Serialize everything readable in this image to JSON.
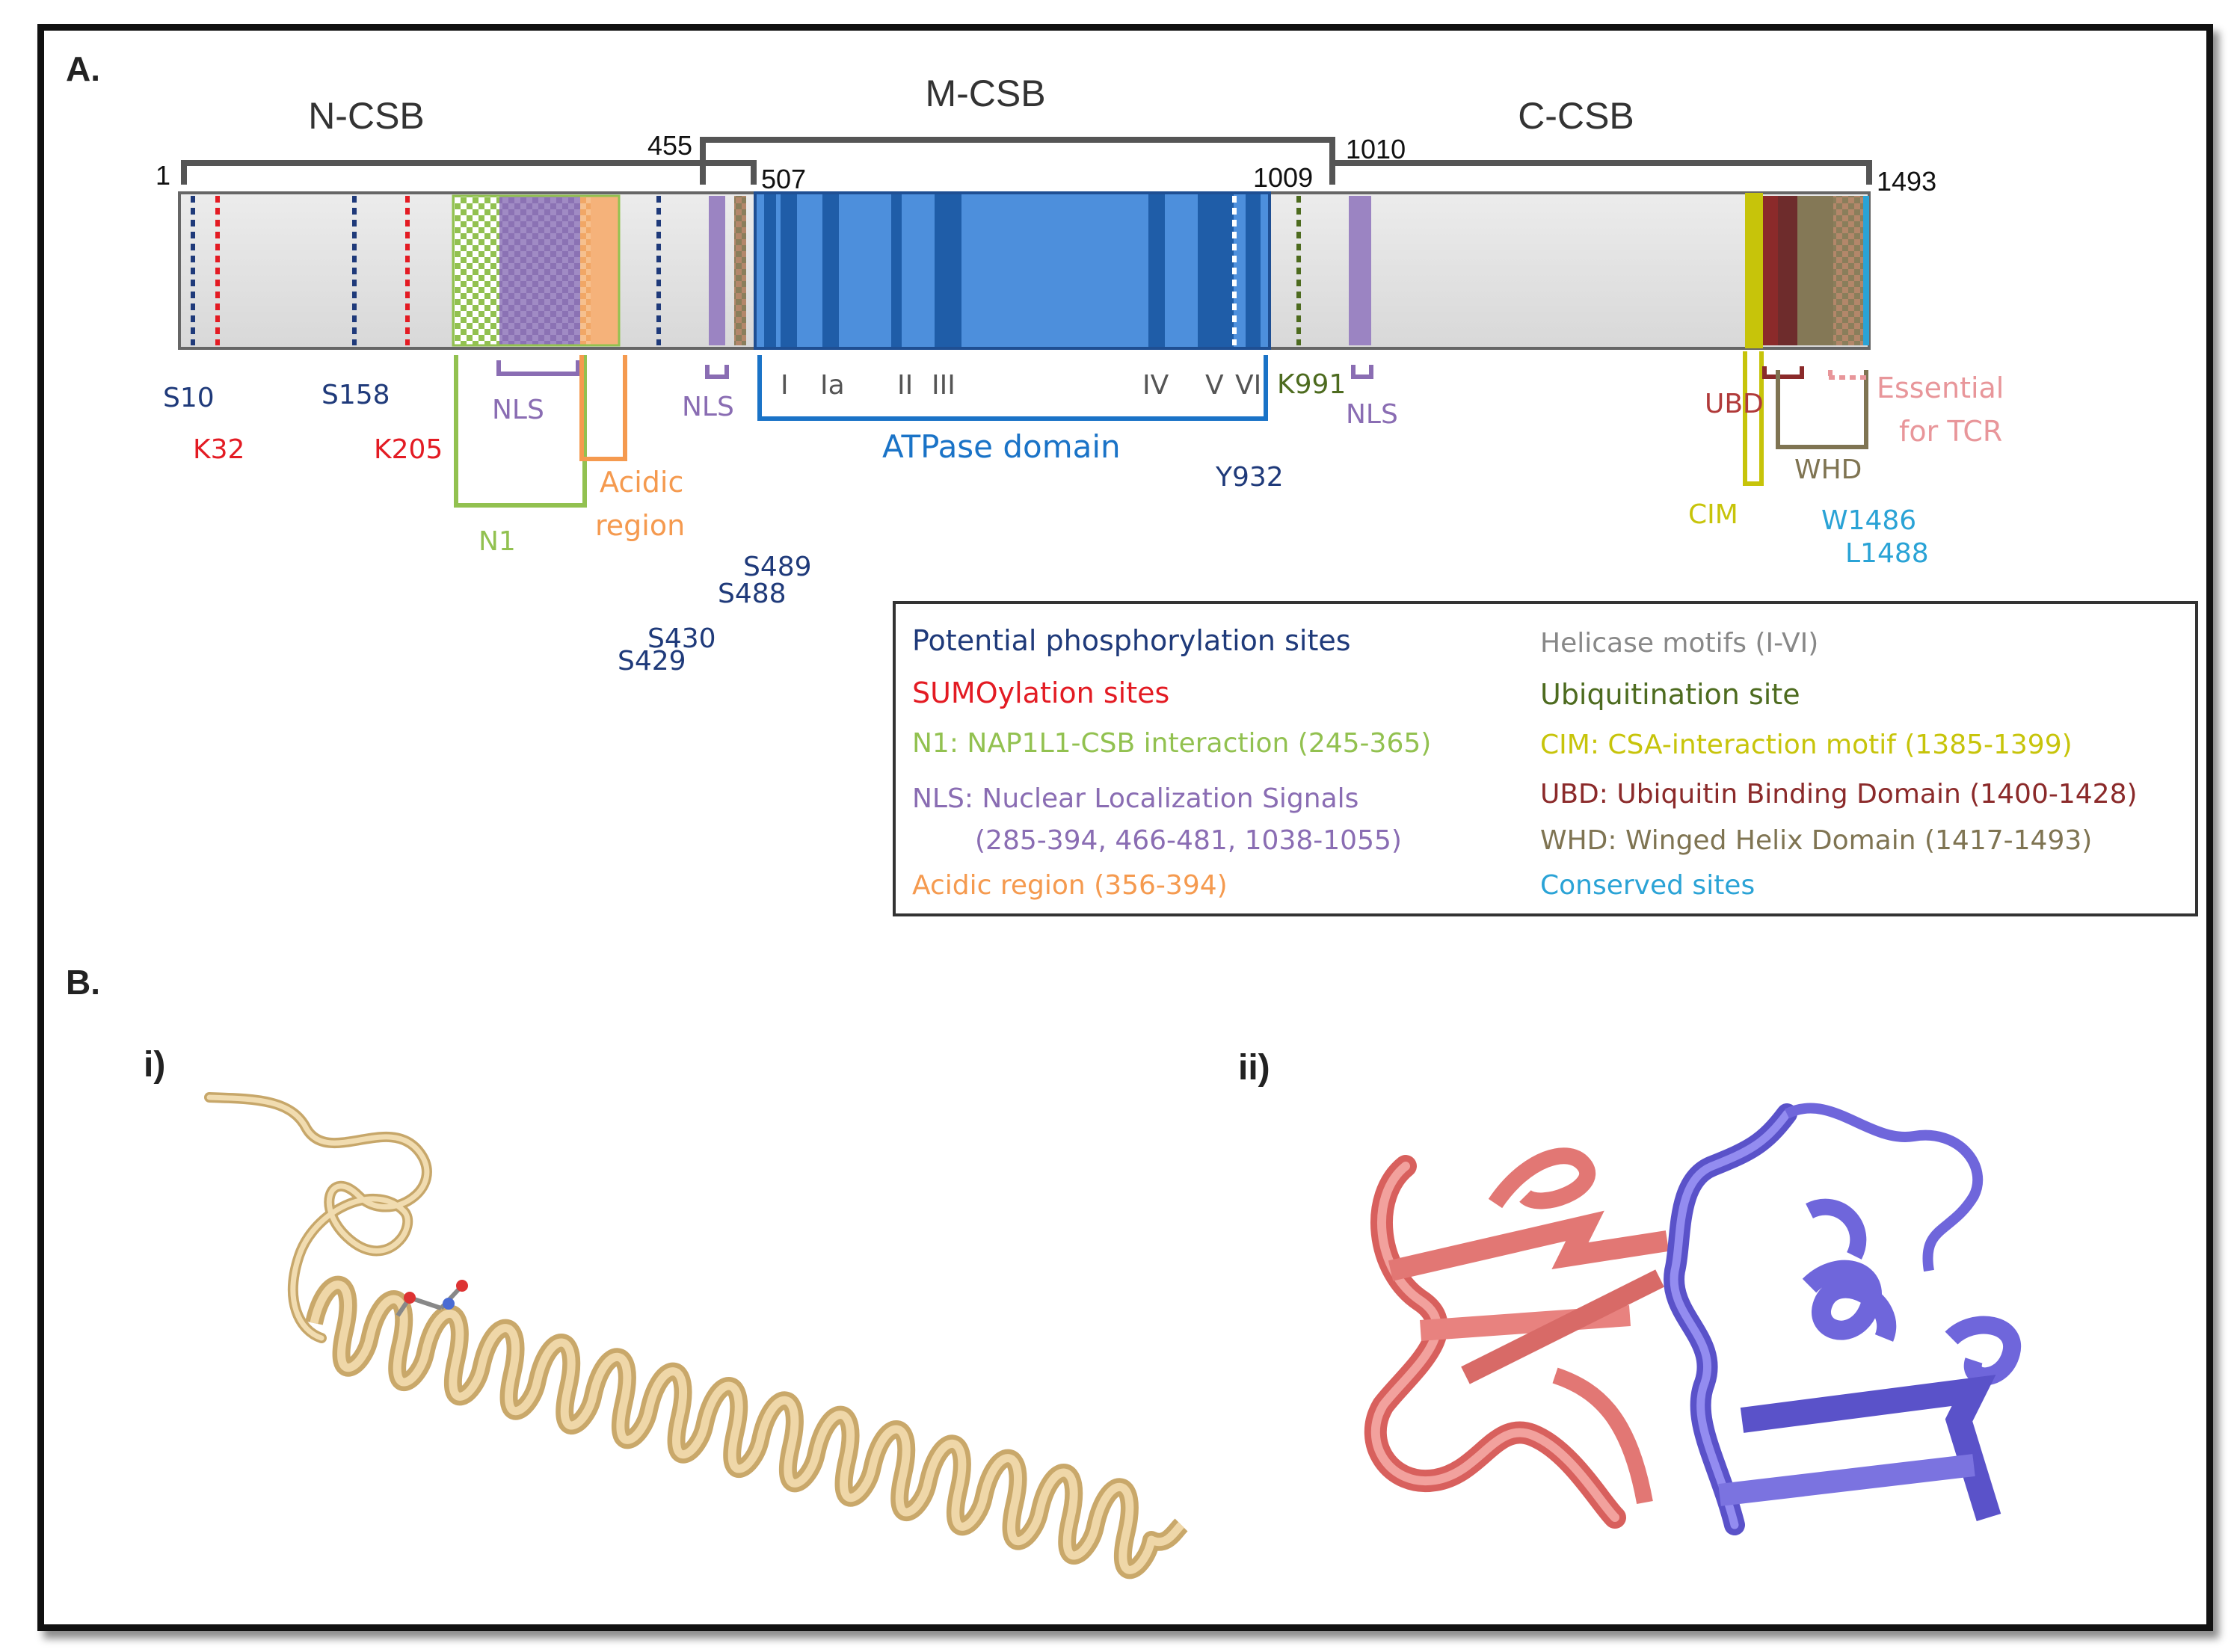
{
  "panel_a": {
    "label": "A.",
    "regions": {
      "n_csb": "N-CSB",
      "m_csb": "M-CSB",
      "c_csb": "C-CSB"
    },
    "positions": {
      "start": "1",
      "p455": "455",
      "p507": "507",
      "p1009": "1009",
      "p1010": "1010",
      "end": "1493"
    },
    "sites": {
      "s10": "S10",
      "k32": "K32",
      "s158": "S158",
      "k205": "K205",
      "s489": "S489",
      "s488": "S488",
      "s430": "S430",
      "s429": "S429",
      "k991": "K991",
      "y932": "Y932",
      "w1486": "W1486",
      "l1488": "L1488"
    },
    "domains": {
      "nls": "NLS",
      "n1": "N1",
      "acidic_line1": "Acidic",
      "acidic_line2": "region",
      "atpase": "ATPase domain",
      "ubd": "UBD",
      "cim": "CIM",
      "whd": "WHD",
      "essential_line1": "Essential",
      "essential_line2": "for TCR"
    },
    "motifs": {
      "m1": "I",
      "m1a": "Ia",
      "m2": "II",
      "m3": "III",
      "m4": "IV",
      "m5": "V",
      "m6": "VI"
    },
    "legend": {
      "left": [
        "Potential phosphorylation sites",
        "SUMOylation sites",
        "N1: NAP1L1-CSB interaction  (245-365)",
        "NLS: Nuclear Localization  Signals",
        "(285-394,  466-481,  1038-1055)",
        "Acidic region (356-394)"
      ],
      "right": [
        "Helicase motifs (I-VI)",
        "Ubiquitination site",
        "CIM: CSA-interaction motif  (1385-1399)",
        "UBD: Ubiquitin Binding Domain (1400-1428)",
        "WHD: Winged Helix Domain (1417-1493)",
        "Conserved sites"
      ]
    }
  },
  "panel_b": {
    "label": "B.",
    "sub_i": "i)",
    "sub_ii": "ii)"
  },
  "colors": {
    "phospho": "#1f3a7a",
    "sumo": "#e31b23",
    "n1": "#92c150",
    "nls": "#8a6db3",
    "acidic": "#f59a4f",
    "atpase": "#1a73c7",
    "ubiquitination": "#4d6b1f",
    "cim": "#c7c40a",
    "ubd": "#8b2a2a",
    "whd": "#7f7452",
    "conserved": "#2aa3d6",
    "essential": "#e8969a",
    "helix_wheat": "#e9cf9b",
    "chain_salmon": "#e27774",
    "chain_slate": "#6f66db"
  }
}
